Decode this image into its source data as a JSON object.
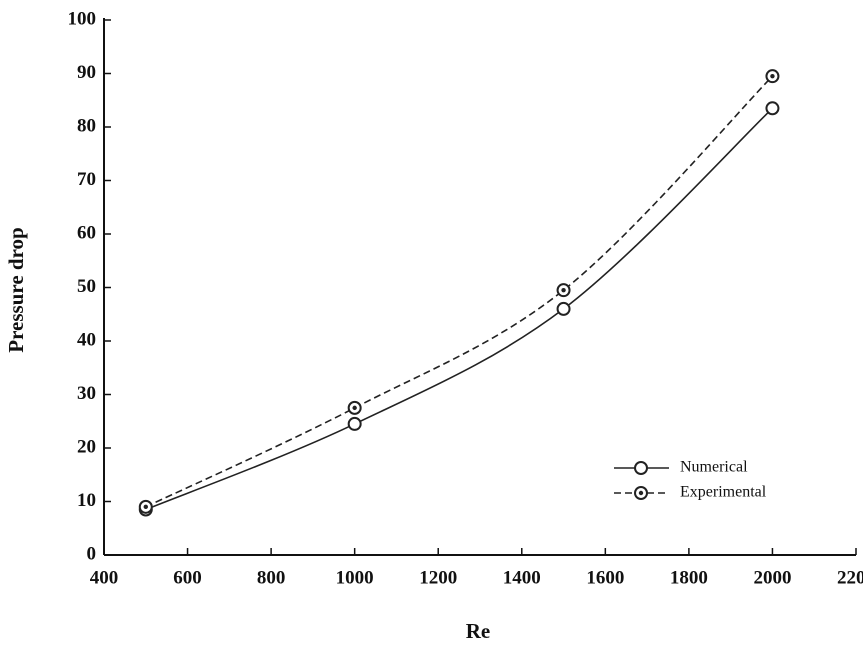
{
  "chart_data": {
    "type": "line",
    "x_label": "Re",
    "y_label": "Pressure drop",
    "xlim": [
      400,
      2200
    ],
    "xticks": [
      400,
      600,
      800,
      1000,
      1200,
      1400,
      1600,
      1800,
      2000,
      2200
    ],
    "ylim": [
      0,
      100
    ],
    "yticks": [
      0,
      10,
      20,
      30,
      40,
      50,
      60,
      70,
      80,
      90,
      100
    ],
    "x": [
      500,
      1000,
      1500,
      2000
    ],
    "series": [
      {
        "name": "Numerical",
        "color": "#222222",
        "line_style": "solid",
        "marker": "open-circle",
        "values": [
          8.5,
          24.5,
          46,
          83.5
        ]
      },
      {
        "name": "Experimental",
        "color": "#222222",
        "line_style": "dashed",
        "marker": "dotted-circle",
        "values": [
          9,
          27.5,
          49.5,
          89.5
        ]
      }
    ],
    "legend": "lower right",
    "smooth": true
  }
}
